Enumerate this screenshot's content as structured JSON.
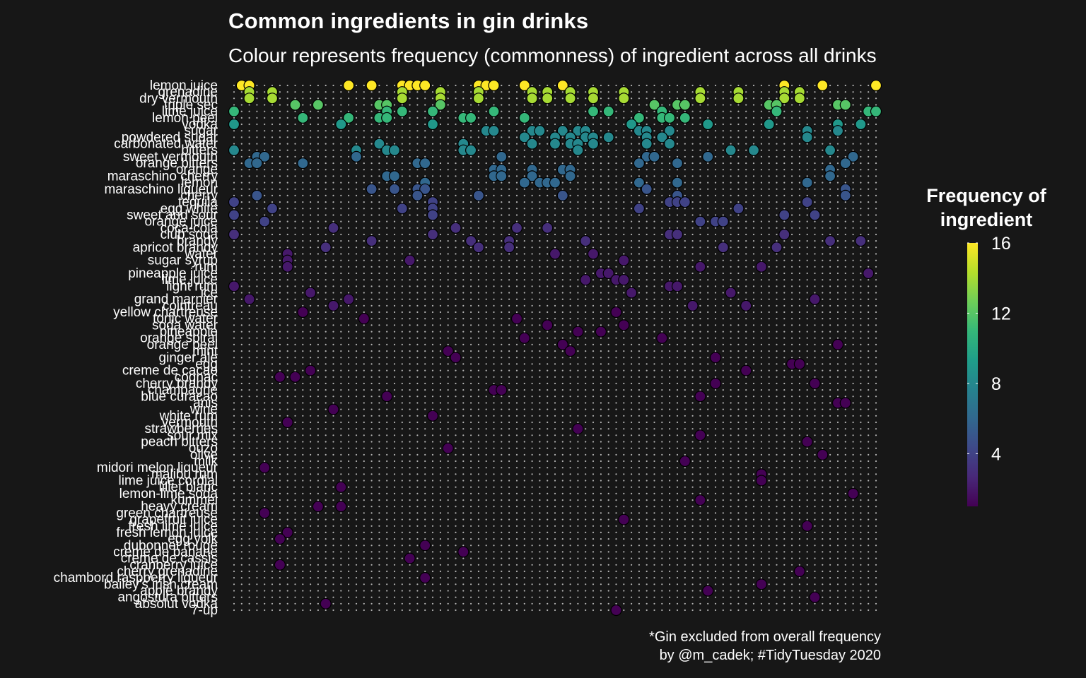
{
  "title": "Common ingredients in gin drinks",
  "subtitle": "Colour represents frequency (commonness) of ingredient across all drinks",
  "caption_line1": "*Gin excluded from overall frequency",
  "caption_line2": "by @m_cadek; #TidyTuesday 2020",
  "colors": {
    "background": "#171717",
    "grid_dot": "#b3b3b3",
    "viridis": [
      "#440154",
      "#482878",
      "#3e4989",
      "#31688e",
      "#26828e",
      "#1f9e89",
      "#35b779",
      "#6ece58",
      "#b5de2b",
      "#fde725"
    ]
  },
  "chart_data": {
    "type": "scatter",
    "title": "Common ingredients in gin drinks",
    "subtitle": "Colour represents frequency (commonness) of ingredient across all drinks",
    "x_description": "one column per gin drink (unlabelled)",
    "x_count": 85,
    "y_categories": [
      "lemon juice",
      "grenadine",
      "dry vermouth",
      "triple sec",
      "lime juice",
      "lemon peel",
      "vodka",
      "sugar",
      "powdered sugar",
      "carbonated water",
      "bitters",
      "sweet vermouth",
      "orange bitters",
      "orange",
      "maraschino cherry",
      "lemon",
      "maraschino liqueur",
      "cherry",
      "tequila",
      "egg white",
      "sweet and sour",
      "orange juice",
      "coca-cola",
      "club soda",
      "brandy",
      "apricot brandy",
      "water",
      "sugar syrup",
      "rum",
      "pineapple juice",
      "lime juice",
      "light rum",
      "ice",
      "grand marnier",
      "cointreau",
      "yellow chartreuse",
      "tonic water",
      "soda water",
      "pineapple",
      "orange spiral",
      "orange peel",
      "mint",
      "ginger ale",
      "egg",
      "creme de cacao",
      "cognac",
      "cherry brandy",
      "champagne",
      "blue curacao",
      "anis",
      "wine",
      "white rum",
      "vermouth",
      "strawberries",
      "sour mix",
      "peach bitters",
      "ouzo",
      "olive",
      "milk",
      "midori melon liqueur",
      "malibu rum",
      "lime juice cordial",
      "lillet blanc",
      "lemon-lime soda",
      "kummel",
      "heavy cream",
      "green chartreuse",
      "grapefruit juice",
      "fresh lime juice",
      "fresh lemon juice",
      "egg yolk",
      "dubonnet rouge",
      "creme de banane",
      "creme de cassis",
      "cranberry juice",
      "cherry grenadine",
      "chambord raspberry liqueur",
      "bailey's irish cream",
      "apple brandy",
      "angostura bitters",
      "absolut vodka",
      "7-up"
    ],
    "legend": {
      "title": "Frequency of ingredient",
      "ticks": [
        4,
        8,
        12,
        16
      ],
      "range": [
        1,
        16
      ],
      "position": "right"
    },
    "grid": true,
    "series": [
      {
        "ingredient": "lemon juice",
        "frequency": 16,
        "drinks": [
          2,
          3,
          16,
          19,
          23,
          24,
          25,
          26,
          33,
          34,
          35,
          39,
          44,
          73,
          78,
          85
        ]
      },
      {
        "ingredient": "grenadine",
        "frequency": 14,
        "drinks": [
          3,
          6,
          23,
          28,
          33,
          40,
          42,
          45,
          48,
          52,
          62,
          67,
          73,
          75
        ]
      },
      {
        "ingredient": "dry vermouth",
        "frequency": 14,
        "drinks": [
          3,
          6,
          23,
          28,
          33,
          40,
          42,
          45,
          48,
          52,
          62,
          67,
          73,
          75
        ]
      },
      {
        "ingredient": "triple sec",
        "frequency": 12,
        "drinks": [
          9,
          12,
          20,
          21,
          28,
          56,
          59,
          60,
          71,
          72,
          80,
          81
        ]
      },
      {
        "ingredient": "lime juice",
        "frequency": 11,
        "drinks": [
          1,
          21,
          23,
          27,
          35,
          48,
          50,
          57,
          72,
          84,
          85
        ]
      },
      {
        "ingredient": "lemon peel",
        "frequency": 11,
        "drinks": [
          10,
          16,
          20,
          21,
          31,
          32,
          39,
          54,
          57,
          58,
          60
        ]
      },
      {
        "ingredient": "vodka",
        "frequency": 9,
        "drinks": [
          1,
          15,
          27,
          53,
          63,
          71,
          80,
          83
        ]
      },
      {
        "ingredient": "sugar",
        "frequency": 8,
        "drinks": [
          34,
          35,
          40,
          41,
          44,
          46,
          47,
          54,
          55,
          58,
          76,
          80
        ]
      },
      {
        "ingredient": "powdered sugar",
        "frequency": 8,
        "drinks": [
          39,
          43,
          45,
          47,
          48,
          50,
          55,
          57,
          76
        ]
      },
      {
        "ingredient": "carbonated water",
        "frequency": 8,
        "drinks": [
          20,
          31,
          40,
          43,
          45,
          46,
          48,
          55,
          58
        ]
      },
      {
        "ingredient": "bitters",
        "frequency": 8,
        "drinks": [
          1,
          17,
          21,
          22,
          31,
          32,
          46,
          66,
          69,
          79
        ]
      },
      {
        "ingredient": "sweet vermouth",
        "frequency": 6,
        "drinks": [
          4,
          5,
          17,
          36,
          55,
          56,
          63,
          82
        ]
      },
      {
        "ingredient": "orange bitters",
        "frequency": 6,
        "drinks": [
          3,
          4,
          10,
          25,
          26,
          54,
          59,
          81
        ]
      },
      {
        "ingredient": "orange",
        "frequency": 6,
        "drinks": [
          35,
          36,
          40,
          44,
          45,
          79
        ]
      },
      {
        "ingredient": "maraschino cherry",
        "frequency": 6,
        "drinks": [
          21,
          22,
          35,
          36,
          40,
          45,
          79
        ]
      },
      {
        "ingredient": "lemon",
        "frequency": 6,
        "drinks": [
          26,
          39,
          41,
          42,
          43,
          54,
          59,
          76
        ]
      },
      {
        "ingredient": "maraschino liqueur",
        "frequency": 5,
        "drinks": [
          19,
          22,
          25,
          26,
          55,
          81
        ]
      },
      {
        "ingredient": "cherry",
        "frequency": 5,
        "drinks": [
          4,
          25,
          33,
          44,
          59,
          81
        ]
      },
      {
        "ingredient": "tequila",
        "frequency": 4,
        "drinks": [
          1,
          27,
          58,
          59,
          60,
          76
        ]
      },
      {
        "ingredient": "egg white",
        "frequency": 4,
        "drinks": [
          6,
          23,
          27,
          54,
          67
        ]
      },
      {
        "ingredient": "sweet and sour",
        "frequency": 4,
        "drinks": [
          1,
          27,
          73,
          77
        ]
      },
      {
        "ingredient": "orange juice",
        "frequency": 4,
        "drinks": [
          5,
          62,
          64,
          65
        ]
      },
      {
        "ingredient": "coca-cola",
        "frequency": 3,
        "drinks": [
          14,
          30,
          38,
          42
        ]
      },
      {
        "ingredient": "club soda",
        "frequency": 3,
        "drinks": [
          1,
          27,
          58,
          59,
          73
        ]
      },
      {
        "ingredient": "brandy",
        "frequency": 3,
        "drinks": [
          19,
          32,
          37,
          47,
          79,
          83
        ]
      },
      {
        "ingredient": "apricot brandy",
        "frequency": 3,
        "drinks": [
          13,
          33,
          37,
          65,
          72
        ]
      },
      {
        "ingredient": "water",
        "frequency": 2,
        "drinks": [
          8,
          43,
          48
        ]
      },
      {
        "ingredient": "sugar syrup",
        "frequency": 2,
        "drinks": [
          8,
          24,
          52
        ]
      },
      {
        "ingredient": "rum",
        "frequency": 2,
        "drinks": [
          8,
          62,
          70
        ]
      },
      {
        "ingredient": "pineapple juice",
        "frequency": 2,
        "drinks": [
          49,
          50,
          84
        ]
      },
      {
        "ingredient": "lime juice",
        "frequency": 2,
        "drinks": [
          47,
          51,
          52
        ]
      },
      {
        "ingredient": "light rum",
        "frequency": 2,
        "drinks": [
          1,
          58,
          59
        ]
      },
      {
        "ingredient": "ice",
        "frequency": 2,
        "drinks": [
          11,
          53,
          66
        ]
      },
      {
        "ingredient": "grand marnier",
        "frequency": 2,
        "drinks": [
          3,
          16,
          77
        ]
      },
      {
        "ingredient": "cointreau",
        "frequency": 2,
        "drinks": [
          14,
          61,
          68
        ]
      },
      {
        "ingredient": "yellow chartreuse",
        "frequency": 1,
        "drinks": [
          10,
          51
        ]
      },
      {
        "ingredient": "tonic water",
        "frequency": 1,
        "drinks": [
          18,
          38
        ]
      },
      {
        "ingredient": "soda water",
        "frequency": 1,
        "drinks": [
          42,
          52
        ]
      },
      {
        "ingredient": "pineapple",
        "frequency": 1,
        "drinks": [
          46,
          49
        ]
      },
      {
        "ingredient": "orange spiral",
        "frequency": 1,
        "drinks": [
          39,
          57
        ]
      },
      {
        "ingredient": "orange peel",
        "frequency": 1,
        "drinks": [
          44,
          80
        ]
      },
      {
        "ingredient": "mint",
        "frequency": 1,
        "drinks": [
          29,
          45
        ]
      },
      {
        "ingredient": "ginger ale",
        "frequency": 1,
        "drinks": [
          30,
          64
        ]
      },
      {
        "ingredient": "egg",
        "frequency": 1,
        "drinks": [
          74,
          75
        ]
      },
      {
        "ingredient": "creme de cacao",
        "frequency": 1,
        "drinks": [
          11,
          68
        ]
      },
      {
        "ingredient": "cognac",
        "frequency": 1,
        "drinks": [
          7,
          9
        ]
      },
      {
        "ingredient": "cherry brandy",
        "frequency": 1,
        "drinks": [
          64,
          77
        ]
      },
      {
        "ingredient": "champagne",
        "frequency": 1,
        "drinks": [
          35,
          36
        ]
      },
      {
        "ingredient": "blue curacao",
        "frequency": 1,
        "drinks": [
          21,
          62
        ]
      },
      {
        "ingredient": "anis",
        "frequency": 1,
        "drinks": [
          80,
          81
        ]
      },
      {
        "ingredient": "wine",
        "frequency": 1,
        "drinks": [
          14
        ]
      },
      {
        "ingredient": "white rum",
        "frequency": 1,
        "drinks": [
          27
        ]
      },
      {
        "ingredient": "vermouth",
        "frequency": 1,
        "drinks": [
          8
        ]
      },
      {
        "ingredient": "strawberries",
        "frequency": 1,
        "drinks": [
          46
        ]
      },
      {
        "ingredient": "sour mix",
        "frequency": 1,
        "drinks": [
          62
        ]
      },
      {
        "ingredient": "peach bitters",
        "frequency": 1,
        "drinks": [
          76
        ]
      },
      {
        "ingredient": "ouzo",
        "frequency": 1,
        "drinks": [
          29
        ]
      },
      {
        "ingredient": "olive",
        "frequency": 1,
        "drinks": [
          78
        ]
      },
      {
        "ingredient": "milk",
        "frequency": 1,
        "drinks": [
          60
        ]
      },
      {
        "ingredient": "midori melon liqueur",
        "frequency": 1,
        "drinks": [
          5
        ]
      },
      {
        "ingredient": "malibu rum",
        "frequency": 1,
        "drinks": [
          70
        ]
      },
      {
        "ingredient": "lime juice cordial",
        "frequency": 1,
        "drinks": [
          70
        ]
      },
      {
        "ingredient": "lillet blanc",
        "frequency": 1,
        "drinks": [
          15
        ]
      },
      {
        "ingredient": "lemon-lime soda",
        "frequency": 1,
        "drinks": [
          82
        ]
      },
      {
        "ingredient": "kummel",
        "frequency": 1,
        "drinks": [
          62
        ]
      },
      {
        "ingredient": "heavy cream",
        "frequency": 1,
        "drinks": [
          12,
          15
        ]
      },
      {
        "ingredient": "green chartreuse",
        "frequency": 1,
        "drinks": [
          5
        ]
      },
      {
        "ingredient": "grapefruit juice",
        "frequency": 1,
        "drinks": [
          52
        ]
      },
      {
        "ingredient": "fresh lime juice",
        "frequency": 1,
        "drinks": [
          76
        ]
      },
      {
        "ingredient": "fresh lemon juice",
        "frequency": 1,
        "drinks": [
          8
        ]
      },
      {
        "ingredient": "egg yolk",
        "frequency": 1,
        "drinks": [
          7
        ]
      },
      {
        "ingredient": "dubonnet rouge",
        "frequency": 1,
        "drinks": [
          26
        ]
      },
      {
        "ingredient": "creme de banane",
        "frequency": 1,
        "drinks": [
          31
        ]
      },
      {
        "ingredient": "creme de cassis",
        "frequency": 1,
        "drinks": [
          24
        ]
      },
      {
        "ingredient": "cranberry juice",
        "frequency": 1,
        "drinks": [
          7
        ]
      },
      {
        "ingredient": "cherry grenadine",
        "frequency": 1,
        "drinks": [
          75
        ]
      },
      {
        "ingredient": "chambord raspberry liqueur",
        "frequency": 1,
        "drinks": [
          26
        ]
      },
      {
        "ingredient": "bailey's irish cream",
        "frequency": 1,
        "drinks": [
          70
        ]
      },
      {
        "ingredient": "apple brandy",
        "frequency": 1,
        "drinks": [
          63
        ]
      },
      {
        "ingredient": "angostura bitters",
        "frequency": 1,
        "drinks": [
          77
        ]
      },
      {
        "ingredient": "absolut vodka",
        "frequency": 1,
        "drinks": [
          13
        ]
      },
      {
        "ingredient": "7-up",
        "frequency": 1,
        "drinks": [
          51
        ]
      }
    ]
  }
}
